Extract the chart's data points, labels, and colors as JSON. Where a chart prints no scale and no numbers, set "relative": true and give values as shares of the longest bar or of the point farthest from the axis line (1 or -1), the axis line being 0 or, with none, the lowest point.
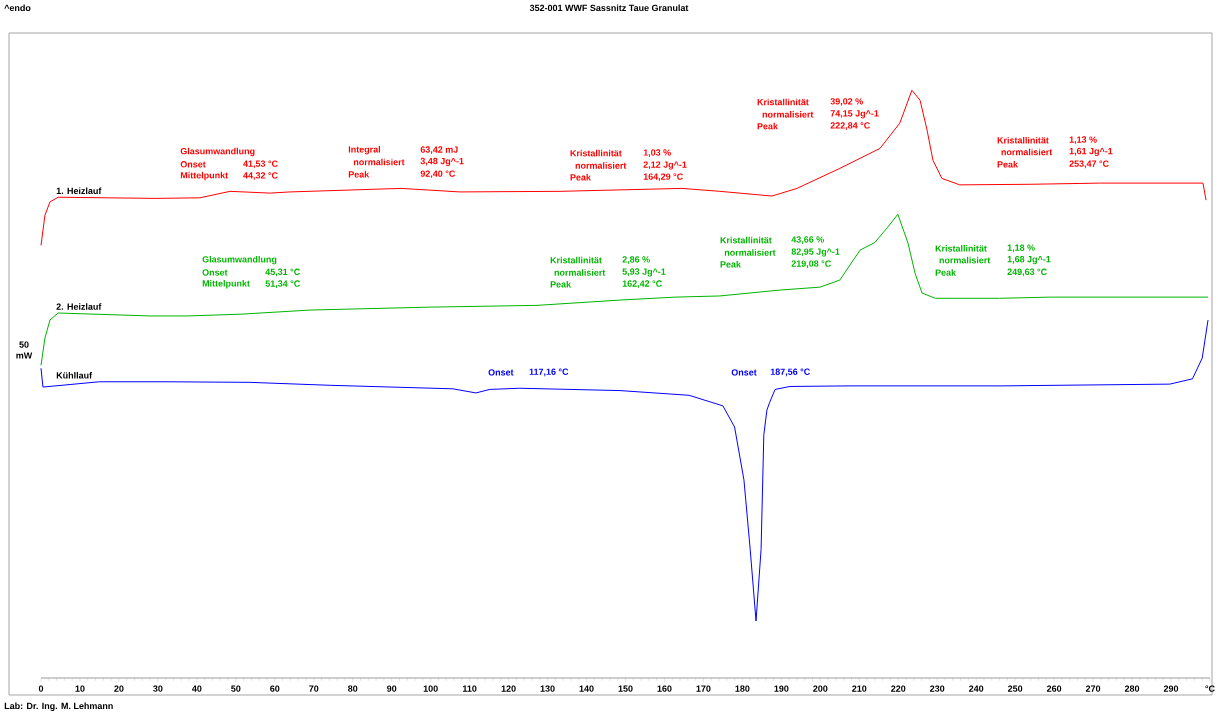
{
  "chart_data": {
    "type": "line",
    "title": "352-001 WWF Sassnitz Taue Granulat",
    "ylabel": "50 mW",
    "relative": true,
    "xlim": [
      0,
      300
    ],
    "xticks": [
      0,
      10,
      20,
      30,
      40,
      50,
      60,
      70,
      80,
      90,
      100,
      110,
      120,
      130,
      140,
      150,
      160,
      170,
      180,
      190,
      200,
      210,
      220,
      230,
      240,
      250,
      260,
      270,
      280,
      290,
      {
        "value": 300,
        "label": "°C"
      }
    ],
    "series": [
      {
        "name": "1. Heizlauf",
        "color": "#ff0000",
        "x": [
          0,
          1.0,
          2.3,
          4.4,
          29.3,
          40.8,
          48.5,
          58.8,
          63.9,
          92.4,
          107.5,
          133.2,
          164.5,
          174.2,
          187.6,
          194,
          205,
          215.3,
          220.4,
          223.5,
          225.6,
          227.4,
          228.9,
          231.2,
          235.8,
          253.8,
          271.7,
          298.2,
          299
        ],
        "values": [
          0.736,
          0.787,
          0.81,
          0.818,
          0.816,
          0.817,
          0.828,
          0.825,
          0.827,
          0.833,
          0.827,
          0.828,
          0.833,
          0.828,
          0.82,
          0.833,
          0.867,
          0.901,
          0.944,
          1.0,
          0.983,
          0.932,
          0.881,
          0.85,
          0.839,
          0.84,
          0.842,
          0.842,
          0.813
        ]
      },
      {
        "name": "2. Heizlauf",
        "color": "#00b400",
        "x": [
          0,
          1.0,
          2.3,
          4.4,
          28,
          37.7,
          51.3,
          69,
          99.8,
          127.3,
          148.6,
          162.7,
          174.2,
          189.6,
          199.9,
          205,
          210.2,
          214,
          217.3,
          219.9,
          222.5,
          224.3,
          226.1,
          229.5,
          246,
          258.9,
          299.5
        ],
        "values": [
          0.532,
          0.578,
          0.609,
          0.621,
          0.616,
          0.616,
          0.619,
          0.626,
          0.631,
          0.634,
          0.643,
          0.648,
          0.65,
          0.66,
          0.665,
          0.677,
          0.728,
          0.741,
          0.767,
          0.789,
          0.74,
          0.689,
          0.655,
          0.646,
          0.646,
          0.648,
          0.648
        ]
      },
      {
        "name": "Kühllauf",
        "color": "#0000ff",
        "x": [
          0,
          0.5,
          15,
          32.6,
          53.6,
          74.2,
          105.7,
          111.6,
          115.2,
          122.9,
          148.6,
          166.3,
          175,
          178,
          180.4,
          182,
          183.5,
          184.8,
          185.5,
          186.3,
          187,
          188.4,
          192.2,
          207.6,
          246.6,
          289.7,
          295.5,
          298,
          299.5
        ],
        "values": [
          0.527,
          0.495,
          0.504,
          0.504,
          0.503,
          0.498,
          0.492,
          0.485,
          0.491,
          0.493,
          0.489,
          0.481,
          0.463,
          0.427,
          0.337,
          0.219,
          0.097,
          0.219,
          0.414,
          0.456,
          0.469,
          0.491,
          0.496,
          0.497,
          0.497,
          0.5,
          0.509,
          0.544,
          0.609
        ]
      }
    ],
    "annotations": [
      "^endo",
      "Lab: Dr. Ing. M. Lehmann",
      "Glasumwandlung",
      "Onset",
      "41,53 °C",
      "Mittelpunkt",
      "44,32 °C",
      "Integral",
      "63,42 mJ",
      "normalisiert",
      "3,48 Jg^-1",
      "Peak",
      "92,40 °C",
      "Kristallinität",
      "1,03 %",
      "normalisiert",
      "2,12 Jg^-1",
      "Peak",
      "164,29 °C",
      "Kristallinität",
      "39,02 %",
      "normalisiert",
      "74,15 Jg^-1",
      "Peak",
      "222,84 °C",
      "Kristallinität",
      "1,13 %",
      "normalisiert",
      "1,61 Jg^-1",
      "Peak",
      "253,47 °C",
      "Glasumwandlung",
      "Onset",
      "45,31 °C",
      "Mittelpunkt",
      "51,34 °C",
      "Kristallinität",
      "2,86 %",
      "normalisiert",
      "5,93 Jg^-1",
      "Peak",
      "162,42 °C",
      "Kristallinität",
      "43,66 %",
      "normalisiert",
      "82,95 Jg^-1",
      "Peak",
      "219,08 °C",
      "Kristallinität",
      "1,18 %",
      "normalisiert",
      "1,68 Jg^-1",
      "Peak",
      "249,63 °C",
      "Onset",
      "117,16 °C",
      "Onset",
      "187,56 °C"
    ]
  }
}
